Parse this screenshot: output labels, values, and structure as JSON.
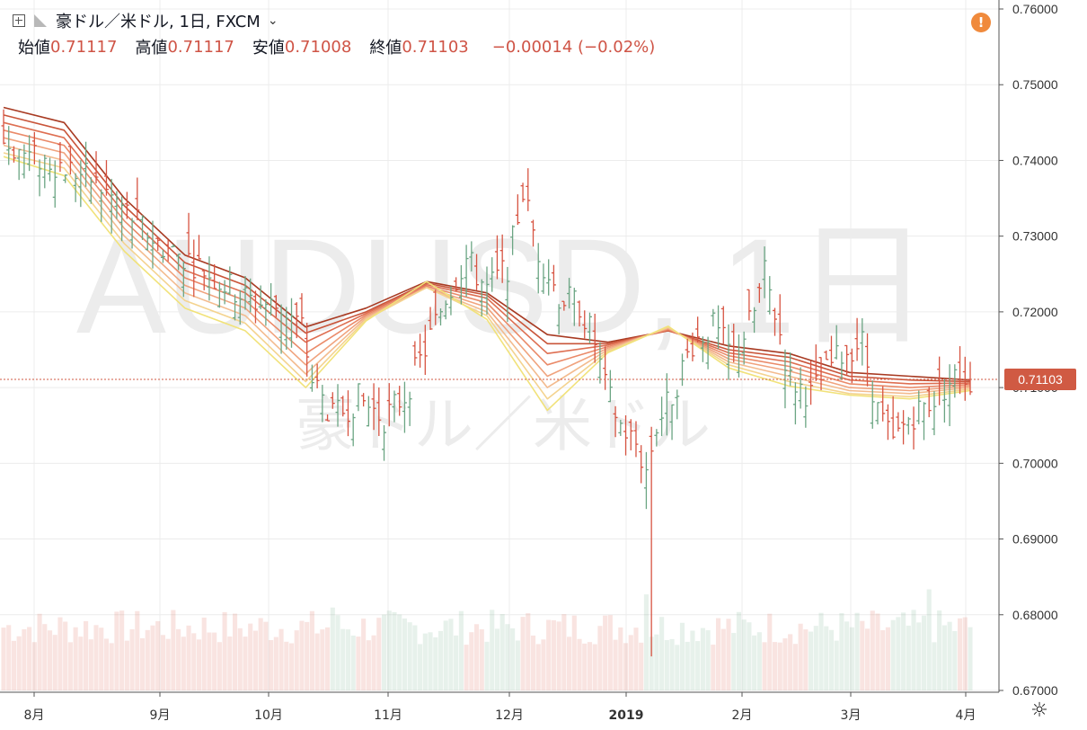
{
  "header": {
    "symbol": "豪ドル／米ドル, 1日, FXCM",
    "open_label": "始値",
    "open_value": "0.71117",
    "high_label": "高値",
    "high_value": "0.71117",
    "low_label": "安値",
    "low_value": "0.71008",
    "close_label": "終値",
    "close_value": "0.71103",
    "change": "−0.00014 (−0.02%)"
  },
  "icons": {
    "add": "plus-square-icon",
    "flag": "flag-icon",
    "alert": "alert-icon",
    "settings": "gear-icon"
  },
  "alert_symbol": "!",
  "settings_symbol": "☼",
  "colors": {
    "up": "#6ba583",
    "down": "#d75442",
    "price_label_bg": "#d05a43",
    "watermark": "#ececec"
  },
  "watermark": {
    "line1": "AUDUSD, 1日",
    "line2": "豪ドル／米ドル"
  },
  "chart_data": {
    "type": "ohlc",
    "title": "豪ドル／米ドル, 1日, FXCM",
    "x_ticks": [
      "8月",
      "9月",
      "10月",
      "11月",
      "12月",
      "2019",
      "2月",
      "3月",
      "4月"
    ],
    "y_ticks": [
      "0.76000",
      "0.75000",
      "0.74000",
      "0.73000",
      "0.72000",
      "0.71000",
      "0.70000",
      "0.69000",
      "0.68000",
      "0.67000"
    ],
    "ylim": [
      0.67,
      0.76
    ],
    "last_price": 0.71103,
    "last_price_label": "0.71103",
    "trend_path": [
      [
        0,
        0.7425
      ],
      [
        5,
        0.7405
      ],
      [
        11,
        0.7395
      ],
      [
        17,
        0.7375
      ],
      [
        22,
        0.7345
      ],
      [
        30,
        0.729
      ],
      [
        36,
        0.727
      ],
      [
        42,
        0.724
      ],
      [
        48,
        0.7215
      ],
      [
        54,
        0.7205
      ],
      [
        58,
        0.718
      ],
      [
        60,
        0.711
      ],
      [
        64,
        0.706
      ],
      [
        69,
        0.7085
      ],
      [
        74,
        0.706
      ],
      [
        78,
        0.709
      ],
      [
        82,
        0.715
      ],
      [
        86,
        0.722
      ],
      [
        90,
        0.727
      ],
      [
        94,
        0.723
      ],
      [
        98,
        0.726
      ],
      [
        101,
        0.736
      ],
      [
        104,
        0.728
      ],
      [
        108,
        0.722
      ],
      [
        112,
        0.721
      ],
      [
        115,
        0.716
      ],
      [
        117,
        0.71
      ],
      [
        120,
        0.705
      ],
      [
        123,
        0.7025
      ],
      [
        125,
        0.699
      ],
      [
        127,
        0.705
      ],
      [
        130,
        0.709
      ],
      [
        134,
        0.716
      ],
      [
        138,
        0.718
      ],
      [
        142,
        0.714
      ],
      [
        146,
        0.72
      ],
      [
        148,
        0.725
      ],
      [
        150,
        0.72
      ],
      [
        153,
        0.711
      ],
      [
        157,
        0.709
      ],
      [
        161,
        0.713
      ],
      [
        164,
        0.715
      ],
      [
        167,
        0.716
      ],
      [
        170,
        0.707
      ],
      [
        173,
        0.7025
      ],
      [
        176,
        0.706
      ],
      [
        180,
        0.708
      ],
      [
        183,
        0.71
      ],
      [
        186,
        0.712
      ],
      [
        188,
        0.711
      ]
    ],
    "ma_bands": [
      {
        "name": "",
        "color": "#a83a22",
        "values": [
          0.747,
          0.745,
          0.735,
          0.7275,
          0.7245,
          0.718,
          0.7205,
          0.724,
          0.7225,
          0.717,
          0.716,
          0.7175,
          0.7155,
          0.7145,
          0.712,
          0.7115,
          0.711
        ]
      },
      {
        "name": "",
        "color": "#c9553a",
        "values": [
          0.746,
          0.744,
          0.734,
          0.7265,
          0.7235,
          0.7172,
          0.72,
          0.7238,
          0.7222,
          0.7158,
          0.7158,
          0.7175,
          0.715,
          0.714,
          0.7115,
          0.711,
          0.7108
        ]
      },
      {
        "name": "",
        "color": "#de6f52",
        "values": [
          0.745,
          0.743,
          0.733,
          0.7255,
          0.7225,
          0.716,
          0.7198,
          0.7236,
          0.7218,
          0.7145,
          0.7156,
          0.7176,
          0.7146,
          0.7134,
          0.711,
          0.7105,
          0.7106
        ]
      },
      {
        "name": "",
        "color": "#ea8a69",
        "values": [
          0.744,
          0.742,
          0.732,
          0.7245,
          0.7215,
          0.7145,
          0.7196,
          0.7234,
          0.7212,
          0.713,
          0.7154,
          0.7177,
          0.7142,
          0.7128,
          0.7105,
          0.71,
          0.7104
        ]
      },
      {
        "name": "",
        "color": "#f0a37e",
        "values": [
          0.743,
          0.741,
          0.731,
          0.7235,
          0.7205,
          0.713,
          0.7194,
          0.7232,
          0.7206,
          0.7115,
          0.7152,
          0.7178,
          0.7138,
          0.7122,
          0.71,
          0.7096,
          0.7102
        ]
      },
      {
        "name": "",
        "color": "#f3bb8e",
        "values": [
          0.742,
          0.74,
          0.73,
          0.7225,
          0.7195,
          0.7118,
          0.7192,
          0.7232,
          0.72,
          0.71,
          0.715,
          0.7179,
          0.7134,
          0.7115,
          0.7096,
          0.7092,
          0.71
        ]
      },
      {
        "name": "",
        "color": "#f4d38f",
        "values": [
          0.741,
          0.739,
          0.729,
          0.7215,
          0.7185,
          0.7108,
          0.719,
          0.7232,
          0.7195,
          0.7085,
          0.7148,
          0.718,
          0.713,
          0.7108,
          0.7092,
          0.7088,
          0.7098
        ]
      },
      {
        "name": "",
        "color": "#f1e27a",
        "values": [
          0.7405,
          0.738,
          0.728,
          0.7205,
          0.7175,
          0.71,
          0.7188,
          0.724,
          0.719,
          0.707,
          0.7146,
          0.7181,
          0.7126,
          0.7102,
          0.709,
          0.7085,
          0.7096
        ]
      }
    ],
    "volume_note": "volume bars (relative)",
    "volume_range": [
      0.6,
      1.8
    ]
  }
}
